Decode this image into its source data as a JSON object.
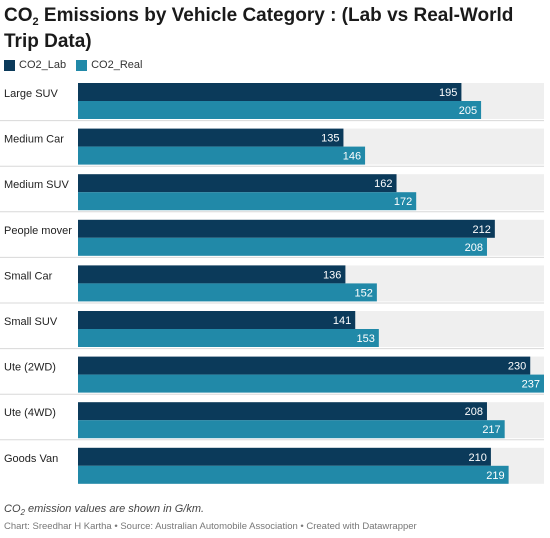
{
  "title_prefix": "CO",
  "title_sub": "2",
  "title_rest": " Emissions by Vehicle Category : (Lab vs Real-World Trip Data)",
  "note_prefix": "CO",
  "note_sub": "2",
  "note_rest": " emission values are shown in G/km.",
  "source": "Chart: Sreedhar H Kartha • Source: Australian Automobile Association • Created with Datawrapper",
  "colors": {
    "lab": "#0b3a5a",
    "real": "#2189a8",
    "track": "#efefef"
  },
  "chart_data": {
    "type": "bar",
    "orientation": "horizontal",
    "categories": [
      "Large SUV",
      "Medium Car",
      "Medium SUV",
      "People mover",
      "Small Car",
      "Small SUV",
      "Ute (2WD)",
      "Ute (4WD)",
      "Goods Van"
    ],
    "series": [
      {
        "name": "CO2_Lab",
        "values": [
          195,
          135,
          162,
          212,
          136,
          141,
          230,
          208,
          210
        ]
      },
      {
        "name": "CO2_Real",
        "values": [
          205,
          146,
          172,
          208,
          152,
          153,
          237,
          217,
          219
        ]
      }
    ],
    "xlim": [
      0,
      237
    ],
    "legend": "top-left"
  }
}
